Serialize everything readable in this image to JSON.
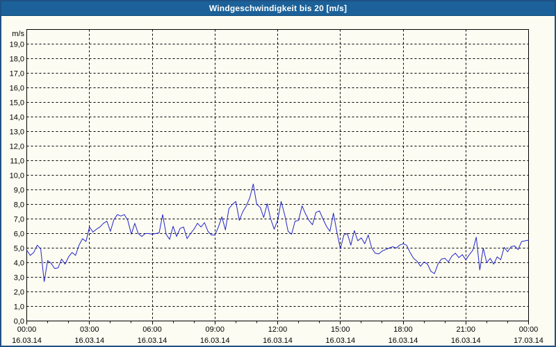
{
  "window": {
    "title": "Windgeschwindigkeit bis 20 [m/s]"
  },
  "colors": {
    "titlebar_bg": "#1c6199",
    "titlebar_text": "#ffffff",
    "window_border": "#1f5185",
    "background": "#fcfcf2",
    "plot_frame": "#000000",
    "gridline": "#000000",
    "series_line": "#2222cc",
    "label_text": "#000000"
  },
  "chart_data": {
    "type": "line",
    "title": "Windgeschwindigkeit bis 20 [m/s]",
    "ylabel_unit": "m/s",
    "ylim": [
      0,
      20
    ],
    "y_tick_step": 1.0,
    "decimal_separator": ",",
    "x_range_hours": [
      0,
      24
    ],
    "grid": "dashed",
    "legend": "none",
    "x_major_ticks": [
      {
        "hour": 0,
        "time": "00:00",
        "date": "16.03.14"
      },
      {
        "hour": 3,
        "time": "03:00",
        "date": "16.03.14"
      },
      {
        "hour": 6,
        "time": "06:00",
        "date": "16.03.14"
      },
      {
        "hour": 9,
        "time": "09:00",
        "date": "16.03.14"
      },
      {
        "hour": 12,
        "time": "12:00",
        "date": "16.03.14"
      },
      {
        "hour": 15,
        "time": "15:00",
        "date": "16.03.14"
      },
      {
        "hour": 18,
        "time": "18:00",
        "date": "16.03.14"
      },
      {
        "hour": 21,
        "time": "21:00",
        "date": "16.03.14"
      },
      {
        "hour": 24,
        "time": "00:00",
        "date": "17.03.14"
      }
    ],
    "x_minor_tick_every_hours": 1,
    "series": [
      {
        "name": "Windgeschwindigkeit",
        "unit": "m/s",
        "color": "#2222cc",
        "start_time": "00:00",
        "interval_minutes": 10,
        "values": [
          4.85,
          4.5,
          4.7,
          5.2,
          4.95,
          2.7,
          4.15,
          3.95,
          3.6,
          3.65,
          4.25,
          3.9,
          4.4,
          4.7,
          4.5,
          5.2,
          5.65,
          5.45,
          6.45,
          6.1,
          6.3,
          6.45,
          6.7,
          6.85,
          6.15,
          6.95,
          7.3,
          7.2,
          7.3,
          6.9,
          5.95,
          6.7,
          6.0,
          5.8,
          6.0,
          6.0,
          5.95,
          6.0,
          6.05,
          7.3,
          5.95,
          5.6,
          6.5,
          5.8,
          6.35,
          6.45,
          5.65,
          6.0,
          6.3,
          6.7,
          6.45,
          6.75,
          6.15,
          5.9,
          5.9,
          6.45,
          7.15,
          6.25,
          7.7,
          8.0,
          8.2,
          6.9,
          7.5,
          7.9,
          8.45,
          9.4,
          8.0,
          7.8,
          7.1,
          8.05,
          7.0,
          6.3,
          6.9,
          8.2,
          7.3,
          6.15,
          5.95,
          6.85,
          6.9,
          7.9,
          7.35,
          6.9,
          6.6,
          7.45,
          7.55,
          7.0,
          6.5,
          6.15,
          7.4,
          6.1,
          4.95,
          5.9,
          6.0,
          5.2,
          6.2,
          5.5,
          5.7,
          5.3,
          5.9,
          5.0,
          4.65,
          4.6,
          4.8,
          4.9,
          5.0,
          5.1,
          5.0,
          5.2,
          5.3,
          5.2,
          4.7,
          4.3,
          4.1,
          3.75,
          4.05,
          3.9,
          3.4,
          3.25,
          3.9,
          4.25,
          4.3,
          4.05,
          4.45,
          4.65,
          4.35,
          4.55,
          4.2,
          4.55,
          4.85,
          5.75,
          3.5,
          5.0,
          4.0,
          4.3,
          3.9,
          4.4,
          4.2,
          5.05,
          4.75,
          5.1,
          5.15,
          4.9,
          5.45,
          5.5,
          5.55
        ]
      }
    ]
  }
}
